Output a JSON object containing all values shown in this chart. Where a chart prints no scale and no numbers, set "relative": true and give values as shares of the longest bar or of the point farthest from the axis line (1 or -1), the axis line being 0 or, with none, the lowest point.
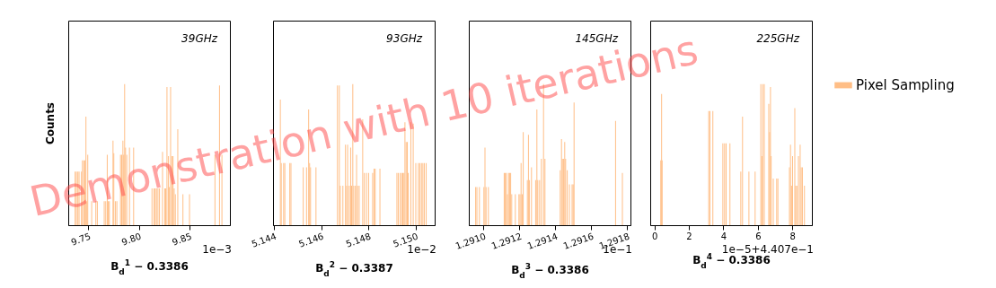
{
  "chart_data": [
    {
      "type": "bar",
      "relative": true,
      "xlabel": "B$_{d}$$^{1}$ − 0.3386",
      "ylabel": "Counts",
      "tick_labels": "x",
      "annotations": [
        "39GHz",
        "1e−3",
        "Demonstration with 10 iterations"
      ],
      "xlim": [
        9.73,
        9.89
      ],
      "xticks": [
        9.75,
        {
          "value": 9.8,
          "label": "9.80"
        },
        9.85
      ],
      "x": [
        9.7368,
        9.738,
        9.7395,
        9.7407,
        9.7431,
        9.744,
        9.7454,
        9.7463,
        9.7475,
        9.7484,
        9.7493,
        9.7532,
        9.7573,
        9.7588,
        9.7656,
        9.7671,
        9.7686,
        9.7695,
        9.7707,
        9.7743,
        9.7751,
        9.7766,
        9.7781,
        9.7817,
        9.7829,
        9.7841,
        9.7849,
        9.7858,
        9.7867,
        9.7879,
        9.7906,
        9.7947,
        9.8129,
        9.8149,
        9.8161,
        9.8173,
        9.8188,
        9.8203,
        9.8233,
        9.8256,
        9.8265,
        9.8277,
        9.8292,
        9.8301,
        9.8313,
        9.8325,
        9.8337,
        9.8348,
        9.836,
        9.8384,
        9.8435,
        9.85,
        9.8752,
        9.8797,
        9.8821
      ],
      "series": [
        {
          "color": "#ffbe86",
          "values": [
            0.38,
            0.38,
            0.38,
            0.38,
            0.38,
            0.46,
            0.46,
            0.46,
            0.77,
            0.17,
            0.5,
            0.17,
            0.17,
            0.17,
            0.17,
            0.17,
            0.5,
            0.17,
            0.17,
            0.6,
            0.51,
            0.17,
            0.17,
            0.5,
            0.5,
            0.6,
            0.5,
            1,
            0.55,
            0.5,
            0.55,
            0.55,
            0.26,
            0.26,
            0.26,
            0.26,
            0.26,
            0.26,
            0.52,
            0.26,
            0.26,
            0.98,
            0.49,
            0.27,
            0.98,
            0.49,
            0.49,
            0.26,
            0.22,
            0.68,
            0.22,
            0.22,
            0.5,
            0.99,
            0.5
          ]
        }
      ]
    },
    {
      "type": "bar",
      "relative": true,
      "xlabel": "B$_{d}$$^{2}$ − 0.3387",
      "tick_labels": "x",
      "annotations": [
        "93GHz",
        "1e−2"
      ],
      "xlim": [
        5.14395,
        5.1508
      ],
      "xticks": [
        5.144,
        5.146,
        5.148,
        {
          "value": 5.15,
          "label": "5.150"
        }
      ],
      "x": [
        5.14426,
        5.1443,
        5.1444,
        5.14445,
        5.14466,
        5.14471,
        5.14523,
        5.14537,
        5.14546,
        5.1455,
        5.14554,
        5.14577,
        5.14668,
        5.14676,
        5.1468,
        5.14691,
        5.14702,
        5.14707,
        5.14711,
        5.14718,
        5.14724,
        5.14728,
        5.14733,
        5.14737,
        5.14744,
        5.14749,
        5.14753,
        5.1476,
        5.14775,
        5.14782,
        5.14791,
        5.148,
        5.14817,
        5.14823,
        5.14828,
        5.14848,
        5.1492,
        5.14926,
        5.14934,
        5.1494,
        5.14945,
        5.1495,
        5.14954,
        5.14959,
        5.14964,
        5.14968,
        5.14979,
        5.14989,
        5.15,
        5.15011,
        5.15017,
        5.15024,
        5.1503,
        5.15036,
        5.15044
      ],
      "series": [
        {
          "color": "#ffbe86",
          "values": [
            0.89,
            0.44,
            0.44,
            0.44,
            0.44,
            0.44,
            0.41,
            0.41,
            0.82,
            0.44,
            0.41,
            0.41,
            0.99,
            0.99,
            0.28,
            0.28,
            0.57,
            0.28,
            0.57,
            0.28,
            0.55,
            0.28,
            1,
            0.28,
            0.28,
            0.5,
            0.28,
            0.28,
            0.75,
            0.37,
            0.37,
            0.37,
            0.37,
            0.4,
            0.4,
            0.4,
            0.37,
            0.37,
            0.37,
            0.37,
            0.37,
            0.37,
            0.73,
            0.59,
            0.59,
            0.37,
            0.73,
            0.72,
            0.44,
            0.44,
            0.44,
            0.44,
            0.44,
            0.44,
            0.44
          ]
        }
      ]
    },
    {
      "type": "bar",
      "relative": true,
      "xlabel": "B$_{d}$$^{3}$ − 0.3386",
      "tick_labels": "x",
      "annotations": [
        "145GHz",
        "1e−1"
      ],
      "xlim": [
        1.290918,
        1.291818
      ],
      "xticks": [
        {
          "value": 1.291,
          "label": "1.2910"
        },
        1.2912,
        1.2914,
        1.2916,
        1.2918
      ],
      "x": [
        1.290956,
        1.290963,
        1.290977,
        1.291002,
        1.291008,
        1.291014,
        1.291027,
        1.291115,
        1.291121,
        1.291127,
        1.291133,
        1.291139,
        1.291145,
        1.291151,
        1.291157,
        1.291177,
        1.291197,
        1.291203,
        1.291209,
        1.291215,
        1.291221,
        1.291244,
        1.29125,
        1.291255,
        1.291267,
        1.29129,
        1.291297,
        1.291302,
        1.291312,
        1.291322,
        1.291334,
        1.291342,
        1.291427,
        1.291434,
        1.291439,
        1.291446,
        1.291452,
        1.291457,
        1.291466,
        1.291478,
        1.291493,
        1.291499,
        1.291504,
        1.291735,
        1.291773
      ],
      "series": [
        {
          "color": "#ffbe86",
          "values": [
            0.27,
            0.27,
            0.27,
            0.27,
            0.55,
            0.27,
            0.27,
            0.37,
            0.37,
            0.37,
            0.22,
            0.37,
            0.37,
            0.37,
            0.22,
            0.22,
            0.22,
            0.22,
            0.44,
            0.22,
            0.66,
            0.32,
            0.64,
            0.32,
            0.41,
            0.32,
            0.82,
            0.32,
            0.32,
            0.47,
            1,
            0.47,
            0.39,
            0.61,
            0.47,
            0.47,
            0.59,
            0.47,
            0.39,
            0.29,
            0.29,
            0.29,
            0.87,
            0.74,
            0.37
          ]
        }
      ]
    },
    {
      "type": "bar",
      "relative": true,
      "xlabel": "B$_{d}$$^{4}$ − 0.3386",
      "tick_labels": "x",
      "legend": "right",
      "annotations": [
        "225GHz",
        "1e−5+4.407e−1"
      ],
      "xlim": [
        -0.24,
        9.13
      ],
      "xticks": [
        0,
        2,
        4,
        6,
        8
      ],
      "x": [
        0.37,
        0.42,
        0.45,
        3.15,
        3.22,
        3.39,
        3.97,
        4.07,
        4.16,
        4.38,
        5.01,
        5.11,
        5.48,
        5.84,
        6.17,
        6.23,
        6.28,
        6.37,
        6.63,
        6.68,
        6.73,
        6.77,
        6.89,
        7.09,
        7.16,
        7.83,
        7.89,
        7.95,
        8.01,
        8.14,
        8.19,
        8.26,
        8.35,
        8.45,
        8.51,
        8.58,
        8.7
      ],
      "series": [
        {
          "name": "Pixel Sampling",
          "color": "#ffbe86",
          "values": [
            0.46,
            0.93,
            0.46,
            0.81,
            0.81,
            0.81,
            0.58,
            0.58,
            0.58,
            0.58,
            0.38,
            0.77,
            0.38,
            0.38,
            1,
            0.49,
            1,
            1,
            0.86,
            0.66,
            0.98,
            0.49,
            0.33,
            0.33,
            0.33,
            0.41,
            0.57,
            0.28,
            0.49,
            0.83,
            0.28,
            0.28,
            0.49,
            0.57,
            0.41,
            0.41,
            0.28
          ]
        }
      ]
    }
  ]
}
